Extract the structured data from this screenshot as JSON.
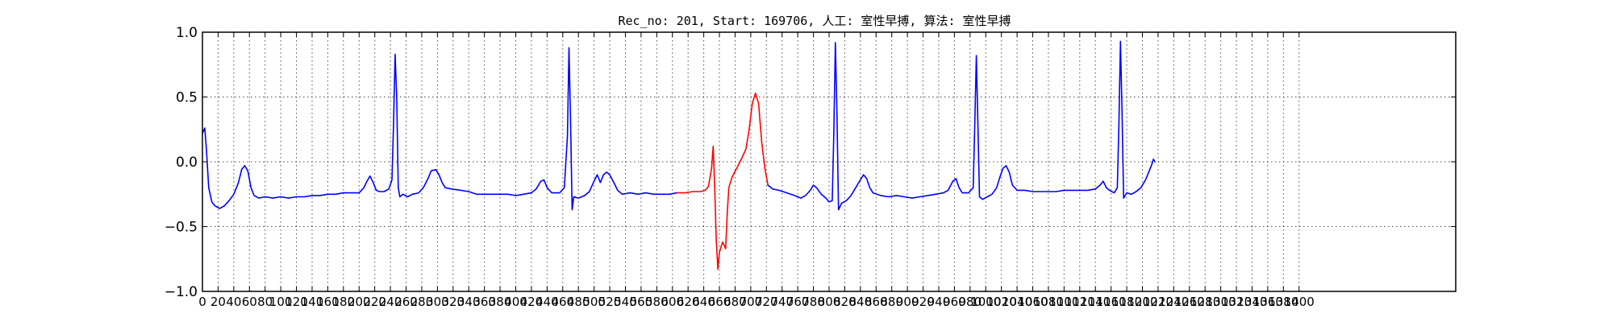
{
  "chart_data": {
    "type": "line",
    "title": "Rec_no: 201, Start: 169706, 人工: 室性早搏, 算法: 室性早搏",
    "xlabel": "",
    "ylabel": "",
    "xlim": [
      0,
      1600
    ],
    "ylim": [
      -1.0,
      1.0
    ],
    "grid": true,
    "y_ticks": [
      -1.0,
      -0.5,
      0.0,
      0.5,
      1.0
    ],
    "y_tick_labels": [
      "−1.0",
      "−0.5",
      "0.0",
      "0.5",
      "1.0"
    ],
    "x_ticks": [
      0,
      20,
      40,
      60,
      80,
      100,
      120,
      140,
      160,
      180,
      200,
      220,
      240,
      260,
      280,
      300,
      320,
      340,
      360,
      380,
      400,
      420,
      440,
      460,
      480,
      500,
      520,
      540,
      560,
      580,
      600,
      620,
      640,
      660,
      680,
      700,
      720,
      740,
      760,
      780,
      800,
      820,
      840,
      860,
      880,
      900,
      920,
      940,
      960,
      980,
      1000,
      1020,
      1040,
      1060,
      1080,
      1100,
      1120,
      1140,
      1160,
      1180,
      1200,
      1220,
      1240,
      1260,
      1280,
      1300,
      1320,
      1340,
      1360,
      1380,
      1400
    ],
    "x_tick_labels": [
      "0",
      "20",
      "40",
      "60",
      "80",
      "100",
      "120",
      "140",
      "160",
      "180",
      "200",
      "220",
      "240",
      "260",
      "280",
      "300",
      "320",
      "340",
      "360",
      "380",
      "400",
      "420",
      "440",
      "460",
      "480",
      "500",
      "520",
      "540",
      "560",
      "580",
      "600",
      "620",
      "640",
      "660",
      "680",
      "700",
      "720",
      "740",
      "760",
      "780",
      "800",
      "820",
      "840",
      "860",
      "880",
      "900",
      "920",
      "940",
      "960",
      "980",
      "1000",
      "1020",
      "1040",
      "1060",
      "1080",
      "1100",
      "1120",
      "1140",
      "1160",
      "1180",
      "1200",
      "1220",
      "1240",
      "1260",
      "1280",
      "1300",
      "1320",
      "1340",
      "1360",
      "1380",
      "1400"
    ],
    "colors": {
      "series": "#0000ff",
      "highlight": "#ff0000",
      "axis": "#000000",
      "grid": "#000000"
    },
    "series": [
      {
        "color": "#0000ff",
        "points": [
          [
            0,
            0.22
          ],
          [
            3,
            0.26
          ],
          [
            5,
            0.1
          ],
          [
            8,
            -0.2
          ],
          [
            12,
            -0.31
          ],
          [
            16,
            -0.34
          ],
          [
            22,
            -0.36
          ],
          [
            28,
            -0.34
          ],
          [
            34,
            -0.3
          ],
          [
            40,
            -0.25
          ],
          [
            46,
            -0.16
          ],
          [
            50,
            -0.06
          ],
          [
            54,
            -0.03
          ],
          [
            58,
            -0.07
          ],
          [
            62,
            -0.2
          ],
          [
            66,
            -0.26
          ],
          [
            72,
            -0.28
          ],
          [
            80,
            -0.27
          ],
          [
            90,
            -0.28
          ],
          [
            100,
            -0.27
          ],
          [
            110,
            -0.28
          ],
          [
            120,
            -0.27
          ],
          [
            130,
            -0.27
          ],
          [
            140,
            -0.26
          ],
          [
            150,
            -0.26
          ],
          [
            160,
            -0.25
          ],
          [
            170,
            -0.25
          ],
          [
            180,
            -0.24
          ],
          [
            190,
            -0.24
          ],
          [
            200,
            -0.24
          ],
          [
            206,
            -0.2
          ],
          [
            210,
            -0.15
          ],
          [
            214,
            -0.11
          ],
          [
            218,
            -0.16
          ],
          [
            222,
            -0.22
          ],
          [
            226,
            -0.23
          ],
          [
            232,
            -0.23
          ],
          [
            238,
            -0.21
          ],
          [
            242,
            -0.14
          ],
          [
            244,
            0.3
          ],
          [
            246,
            0.83
          ],
          [
            248,
            0.5
          ],
          [
            250,
            -0.2
          ],
          [
            252,
            -0.27
          ],
          [
            256,
            -0.25
          ],
          [
            262,
            -0.27
          ],
          [
            268,
            -0.25
          ],
          [
            276,
            -0.24
          ],
          [
            282,
            -0.2
          ],
          [
            288,
            -0.13
          ],
          [
            292,
            -0.07
          ],
          [
            298,
            -0.06
          ],
          [
            302,
            -0.1
          ],
          [
            306,
            -0.16
          ],
          [
            310,
            -0.2
          ],
          [
            318,
            -0.21
          ],
          [
            330,
            -0.22
          ],
          [
            340,
            -0.23
          ],
          [
            350,
            -0.25
          ],
          [
            360,
            -0.25
          ],
          [
            370,
            -0.25
          ],
          [
            380,
            -0.25
          ],
          [
            390,
            -0.25
          ],
          [
            400,
            -0.26
          ],
          [
            410,
            -0.25
          ],
          [
            420,
            -0.24
          ],
          [
            426,
            -0.21
          ],
          [
            432,
            -0.15
          ],
          [
            436,
            -0.14
          ],
          [
            440,
            -0.2
          ],
          [
            446,
            -0.24
          ],
          [
            456,
            -0.24
          ],
          [
            462,
            -0.2
          ],
          [
            466,
            0.2
          ],
          [
            468,
            0.88
          ],
          [
            470,
            0.3
          ],
          [
            472,
            -0.37
          ],
          [
            474,
            -0.27
          ],
          [
            480,
            -0.28
          ],
          [
            488,
            -0.26
          ],
          [
            494,
            -0.23
          ],
          [
            500,
            -0.15
          ],
          [
            504,
            -0.1
          ],
          [
            508,
            -0.16
          ],
          [
            512,
            -0.1
          ],
          [
            516,
            -0.08
          ],
          [
            520,
            -0.1
          ],
          [
            526,
            -0.17
          ],
          [
            530,
            -0.22
          ],
          [
            536,
            -0.25
          ],
          [
            546,
            -0.24
          ],
          [
            556,
            -0.25
          ],
          [
            566,
            -0.24
          ],
          [
            576,
            -0.25
          ],
          [
            586,
            -0.25
          ],
          [
            596,
            -0.25
          ],
          [
            606,
            -0.24
          ]
        ]
      },
      {
        "color": "#ff0000",
        "points": [
          [
            606,
            -0.24
          ],
          [
            616,
            -0.24
          ],
          [
            626,
            -0.23
          ],
          [
            636,
            -0.23
          ],
          [
            642,
            -0.22
          ],
          [
            646,
            -0.19
          ],
          [
            650,
            -0.05
          ],
          [
            652,
            0.12
          ],
          [
            654,
            -0.2
          ],
          [
            656,
            -0.6
          ],
          [
            658,
            -0.83
          ],
          [
            660,
            -0.7
          ],
          [
            664,
            -0.62
          ],
          [
            668,
            -0.67
          ],
          [
            670,
            -0.4
          ],
          [
            672,
            -0.2
          ],
          [
            676,
            -0.12
          ],
          [
            682,
            -0.05
          ],
          [
            688,
            0.02
          ],
          [
            694,
            0.1
          ],
          [
            698,
            0.25
          ],
          [
            702,
            0.45
          ],
          [
            706,
            0.53
          ],
          [
            710,
            0.45
          ],
          [
            714,
            0.15
          ],
          [
            718,
            -0.05
          ],
          [
            722,
            -0.18
          ]
        ]
      },
      {
        "color": "#0000ff",
        "points": [
          [
            722,
            -0.18
          ],
          [
            728,
            -0.21
          ],
          [
            736,
            -0.22
          ],
          [
            746,
            -0.24
          ],
          [
            756,
            -0.26
          ],
          [
            764,
            -0.28
          ],
          [
            770,
            -0.26
          ],
          [
            776,
            -0.22
          ],
          [
            780,
            -0.18
          ],
          [
            784,
            -0.2
          ],
          [
            790,
            -0.25
          ],
          [
            796,
            -0.28
          ],
          [
            800,
            -0.31
          ],
          [
            804,
            -0.3
          ],
          [
            806,
            0.2
          ],
          [
            808,
            0.92
          ],
          [
            810,
            0.4
          ],
          [
            812,
            -0.37
          ],
          [
            816,
            -0.32
          ],
          [
            822,
            -0.3
          ],
          [
            828,
            -0.26
          ],
          [
            834,
            -0.2
          ],
          [
            840,
            -0.14
          ],
          [
            844,
            -0.1
          ],
          [
            848,
            -0.13
          ],
          [
            852,
            -0.2
          ],
          [
            856,
            -0.24
          ],
          [
            866,
            -0.26
          ],
          [
            876,
            -0.27
          ],
          [
            886,
            -0.26
          ],
          [
            896,
            -0.27
          ],
          [
            906,
            -0.28
          ],
          [
            916,
            -0.27
          ],
          [
            926,
            -0.26
          ],
          [
            936,
            -0.25
          ],
          [
            946,
            -0.24
          ],
          [
            952,
            -0.22
          ],
          [
            958,
            -0.15
          ],
          [
            962,
            -0.13
          ],
          [
            966,
            -0.2
          ],
          [
            970,
            -0.24
          ],
          [
            978,
            -0.24
          ],
          [
            984,
            -0.2
          ],
          [
            986,
            0.3
          ],
          [
            988,
            0.82
          ],
          [
            990,
            0.3
          ],
          [
            992,
            -0.27
          ],
          [
            996,
            -0.29
          ],
          [
            1002,
            -0.27
          ],
          [
            1008,
            -0.25
          ],
          [
            1014,
            -0.2
          ],
          [
            1018,
            -0.12
          ],
          [
            1022,
            -0.05
          ],
          [
            1026,
            -0.03
          ],
          [
            1030,
            -0.08
          ],
          [
            1034,
            -0.18
          ],
          [
            1040,
            -0.22
          ],
          [
            1050,
            -0.22
          ],
          [
            1060,
            -0.23
          ],
          [
            1070,
            -0.23
          ],
          [
            1080,
            -0.23
          ],
          [
            1090,
            -0.23
          ],
          [
            1100,
            -0.22
          ],
          [
            1110,
            -0.22
          ],
          [
            1120,
            -0.22
          ],
          [
            1130,
            -0.22
          ],
          [
            1140,
            -0.21
          ],
          [
            1146,
            -0.18
          ],
          [
            1150,
            -0.15
          ],
          [
            1154,
            -0.2
          ],
          [
            1158,
            -0.22
          ],
          [
            1164,
            -0.24
          ],
          [
            1168,
            -0.2
          ],
          [
            1170,
            0.3
          ],
          [
            1172,
            0.93
          ],
          [
            1174,
            0.4
          ],
          [
            1176,
            -0.28
          ],
          [
            1180,
            -0.24
          ],
          [
            1186,
            -0.25
          ],
          [
            1192,
            -0.23
          ],
          [
            1198,
            -0.2
          ],
          [
            1204,
            -0.14
          ],
          [
            1208,
            -0.08
          ],
          [
            1212,
            -0.02
          ],
          [
            1214,
            0.02
          ],
          [
            1216,
            0.0
          ]
        ]
      }
    ]
  }
}
